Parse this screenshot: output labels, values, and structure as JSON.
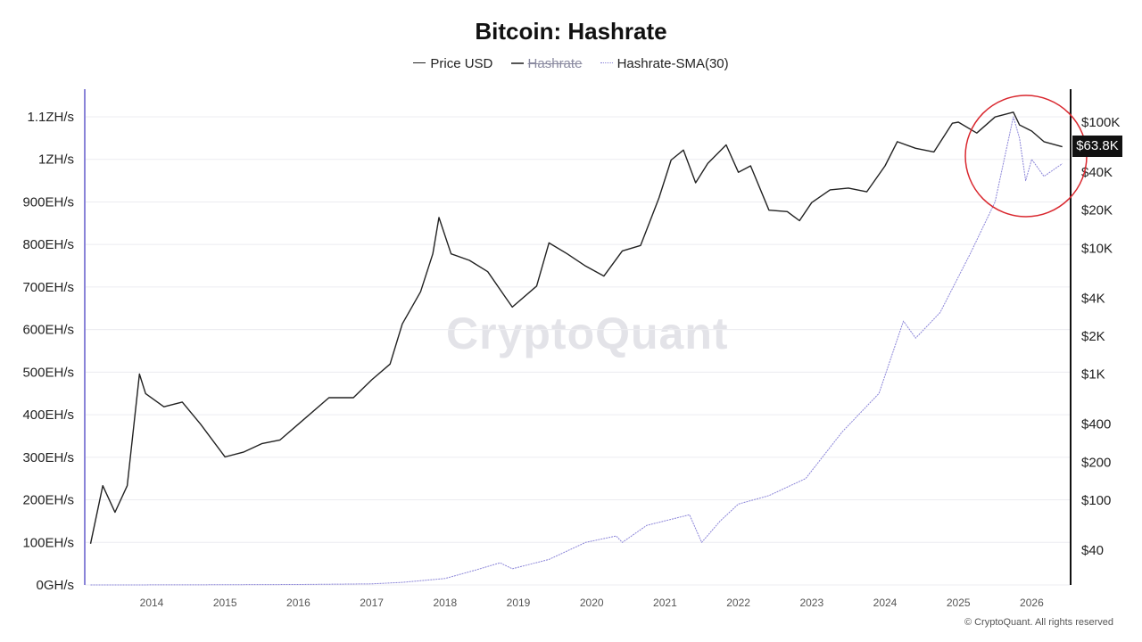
{
  "header": {
    "title": "Bitcoin: Hashrate"
  },
  "legend": {
    "items": [
      {
        "label": "Price USD",
        "enabled": true,
        "color": "#222222"
      },
      {
        "label": "Hashrate",
        "enabled": false,
        "color": "#555555"
      },
      {
        "label": "Hashrate-SMA(30)",
        "enabled": true,
        "color": "#8a84d8"
      }
    ]
  },
  "watermark": "CryptoQuant",
  "copyright": "© CryptoQuant. All rights reserved",
  "price_badge": "$63.8K",
  "highlight": {
    "shape": "circle",
    "color": "#d9272e"
  },
  "chart_data": {
    "type": "line",
    "title": "Bitcoin: Hashrate",
    "x_ticks": [
      "2014",
      "2015",
      "2016",
      "2017",
      "2018",
      "2019",
      "2020",
      "2021",
      "2022",
      "2023",
      "2024",
      "2025",
      "2026"
    ],
    "left_axis": {
      "ticks": [
        "0GH/s",
        "100EH/s",
        "200EH/s",
        "300EH/s",
        "400EH/s",
        "500EH/s",
        "600EH/s",
        "700EH/s",
        "800EH/s",
        "900EH/s",
        "1ZH/s",
        "1.1ZH/s"
      ],
      "tick_values": [
        0,
        100,
        200,
        300,
        400,
        500,
        600,
        700,
        800,
        900,
        1000,
        1100
      ],
      "unit": "EH/s",
      "range": [
        0,
        1100
      ]
    },
    "right_axis": {
      "scale": "log",
      "ticks": [
        "$100K",
        "$40K",
        "$20K",
        "$10K",
        "$4K",
        "$2K",
        "$1K",
        "$400",
        "$200",
        "$100",
        "$40"
      ],
      "tick_values": [
        100000,
        40000,
        20000,
        10000,
        4000,
        2000,
        1000,
        400,
        200,
        100,
        40
      ]
    },
    "grid": true,
    "legend_position": "top-center",
    "series": [
      {
        "name": "Price USD",
        "axis": "right",
        "color": "#222222",
        "x": [
          "2013-03",
          "2013-05",
          "2013-07",
          "2013-09",
          "2013-11",
          "2013-12",
          "2014-03",
          "2014-06",
          "2014-09",
          "2015-01",
          "2015-04",
          "2015-07",
          "2015-10",
          "2016-01",
          "2016-06",
          "2016-10",
          "2017-01",
          "2017-04",
          "2017-06",
          "2017-09",
          "2017-11",
          "2017-12",
          "2018-02",
          "2018-05",
          "2018-08",
          "2018-11",
          "2018-12",
          "2019-04",
          "2019-06",
          "2019-09",
          "2019-12",
          "2020-03",
          "2020-06",
          "2020-09",
          "2020-12",
          "2021-02",
          "2021-04",
          "2021-06",
          "2021-08",
          "2021-11",
          "2022-01",
          "2022-03",
          "2022-06",
          "2022-09",
          "2022-11",
          "2023-01",
          "2023-04",
          "2023-07",
          "2023-10",
          "2024-01",
          "2024-03",
          "2024-06",
          "2024-09",
          "2024-12",
          "2025-01",
          "2025-04",
          "2025-07",
          "2025-10",
          "2025-11",
          "2026-01",
          "2026-03",
          "2026-06"
        ],
        "values": [
          45,
          130,
          80,
          130,
          1000,
          700,
          550,
          600,
          400,
          220,
          240,
          280,
          300,
          400,
          650,
          650,
          900,
          1200,
          2500,
          4500,
          9000,
          17500,
          9000,
          8000,
          6500,
          4000,
          3400,
          5000,
          11000,
          9000,
          7200,
          6000,
          9500,
          10500,
          25000,
          50000,
          60000,
          33000,
          47000,
          66000,
          40000,
          45000,
          20000,
          19500,
          16500,
          23000,
          29000,
          30000,
          28000,
          45000,
          70000,
          62000,
          58000,
          98000,
          100000,
          82000,
          110000,
          120000,
          95000,
          85000,
          70000,
          63800
        ]
      },
      {
        "name": "Hashrate-SMA(30)",
        "axis": "left",
        "color": "#8a84d8",
        "x": [
          "2013-03",
          "2014-06",
          "2016-01",
          "2017-01",
          "2017-06",
          "2018-01",
          "2018-06",
          "2018-10",
          "2018-12",
          "2019-06",
          "2019-12",
          "2020-05",
          "2020-06",
          "2020-10",
          "2021-05",
          "2021-07",
          "2021-10",
          "2022-01",
          "2022-06",
          "2022-12",
          "2023-06",
          "2023-12",
          "2024-04",
          "2024-06",
          "2024-10",
          "2025-03",
          "2025-07",
          "2025-10",
          "2025-11",
          "2025-12",
          "2026-01",
          "2026-03",
          "2026-06"
        ],
        "values": [
          0.002,
          0.2,
          1,
          2.5,
          6,
          15,
          35,
          52,
          38,
          60,
          100,
          115,
          100,
          140,
          165,
          100,
          150,
          190,
          210,
          250,
          360,
          450,
          620,
          580,
          640,
          780,
          900,
          1100,
          1050,
          950,
          1000,
          960,
          990
        ]
      }
    ]
  }
}
